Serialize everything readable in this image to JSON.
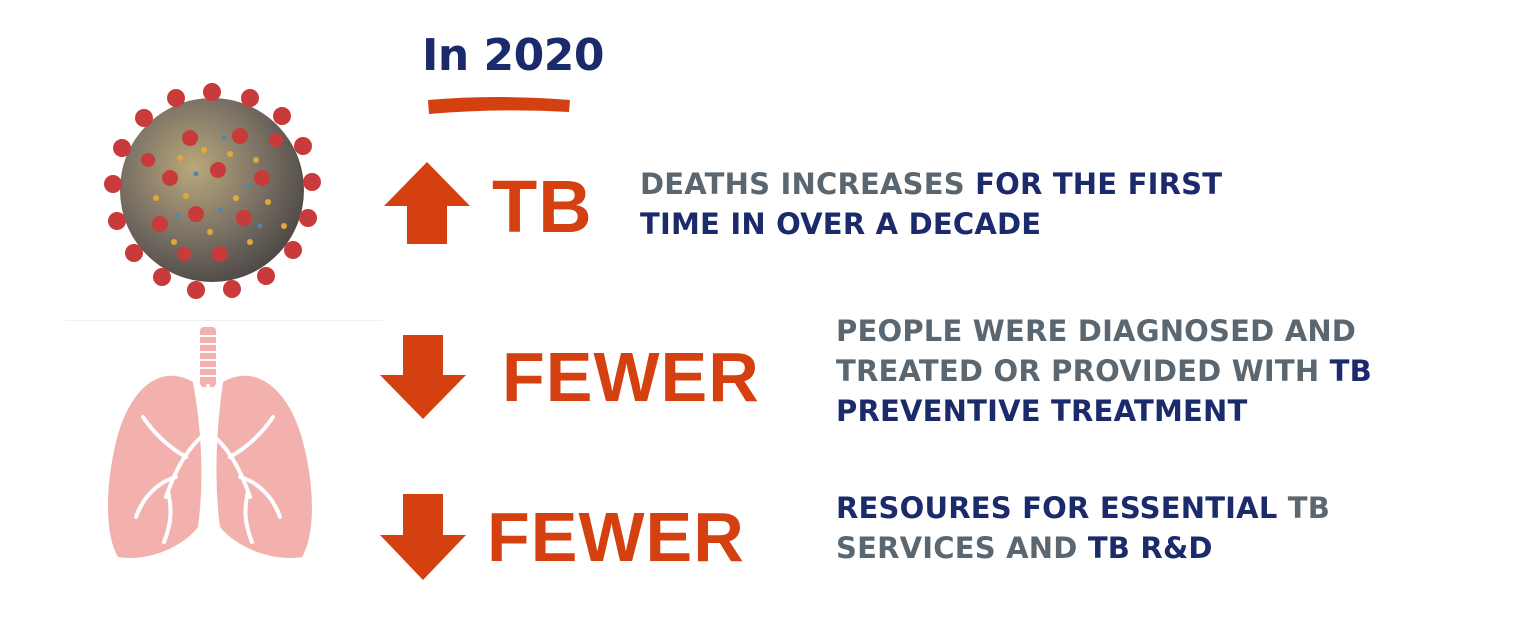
{
  "header": {
    "title": "In 2020"
  },
  "rows": [
    {
      "arrow": "up-arrow",
      "keyword": "TB",
      "line1_grey": "DEATHS INCREASES ",
      "line1_navy": "FOR THE FIRST",
      "line2_navy": "TIME IN OVER A DECADE"
    },
    {
      "arrow": "down-arrow",
      "keyword": "FEWER",
      "line1_grey": "PEOPLE WERE DIAGNOSED AND",
      "line2_grey": "TREATED OR PROVIDED WITH ",
      "line2_navy": "TB",
      "line3_navy": "PREVENTIVE TREATMENT"
    },
    {
      "arrow": "down-arrow",
      "keyword": "FEWER",
      "line1_navy": "RESOURES FOR ESSENTIAL ",
      "line1_grey": "TB",
      "line2_grey": "SERVICES AND ",
      "line2_navy": "TB R&D"
    }
  ],
  "colors": {
    "accent": "#d4400f",
    "navy": "#1b2a6b",
    "grey": "#5b6770"
  },
  "icons": [
    "coronavirus-icon",
    "lungs-icon",
    "up-arrow-icon",
    "down-arrow-icon"
  ]
}
